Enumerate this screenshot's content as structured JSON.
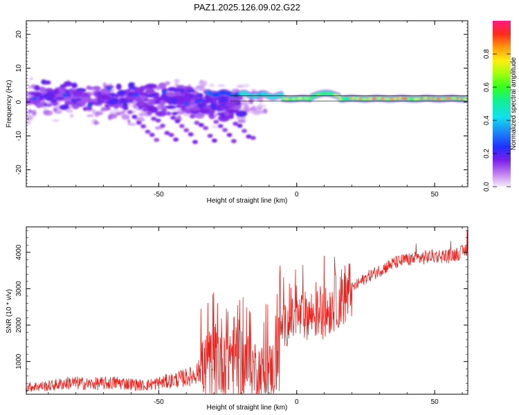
{
  "title": "PAZ1.2025.126.09.02.G22",
  "chart_data": [
    {
      "type": "heatmap",
      "name": "spectrogram",
      "xlabel": "Height of straight line (km)",
      "ylabel": "Frequency (Hz)",
      "xlim": [
        -98,
        62
      ],
      "ylim": [
        -25,
        24
      ],
      "xticks": [
        "-50",
        "0",
        "50"
      ],
      "xtick_values": [
        -50,
        0,
        50
      ],
      "yticks": [
        "20",
        "10",
        "0",
        "-10",
        "-20"
      ],
      "ytick_values": [
        20,
        10,
        0,
        -10,
        -20
      ],
      "colorbar": {
        "label": "Normalized spectral amplitude",
        "range": [
          0,
          1
        ],
        "ticks": [
          "0.0",
          "0.2",
          "0.4",
          "0.6",
          "0.8"
        ],
        "tick_values": [
          0.0,
          0.2,
          0.4,
          0.6,
          0.8
        ]
      },
      "reference_line_hz": [
        0.3,
        1.8
      ],
      "description_points": [
        {
          "x": -96,
          "f": 1,
          "a": 0.25
        },
        {
          "x": -92,
          "f": 5,
          "a": 0.1
        },
        {
          "x": -90,
          "f": -2,
          "a": 0.15
        },
        {
          "x": -85,
          "f": 2,
          "a": 0.3
        },
        {
          "x": -82,
          "f": 4,
          "a": 0.12
        },
        {
          "x": -80,
          "f": -3,
          "a": 0.12
        },
        {
          "x": -76,
          "f": 1,
          "a": 0.1
        },
        {
          "x": -72,
          "f": -1,
          "a": 0.25
        },
        {
          "x": -70,
          "f": 5,
          "a": 0.1
        },
        {
          "x": -66,
          "f": -6,
          "a": 0.1
        },
        {
          "x": -62,
          "f": 2,
          "a": 0.12
        },
        {
          "x": -60,
          "f": 3,
          "a": 0.1
        },
        {
          "x": -55,
          "f": -8,
          "a": 0.1
        },
        {
          "x": -50,
          "f": 5,
          "a": 0.12
        },
        {
          "x": -45,
          "f": -2,
          "a": 0.1
        },
        {
          "x": -42,
          "f": 1,
          "a": 0.12
        },
        {
          "x": -35,
          "f": 0,
          "a": 0.25
        },
        {
          "x": -30,
          "f": 2.5,
          "a": 0.22
        },
        {
          "x": -25,
          "f": 3,
          "a": 0.3
        },
        {
          "x": -20,
          "f": 3,
          "a": 0.35
        },
        {
          "x": -15,
          "f": 2.5,
          "a": 0.4
        },
        {
          "x": -10,
          "f": 2,
          "a": 0.45
        },
        {
          "x": -5,
          "f": 1.5,
          "a": 0.55
        },
        {
          "x": 0,
          "f": 1,
          "a": 0.75
        },
        {
          "x": 5,
          "f": 1.2,
          "a": 0.7
        },
        {
          "x": 10,
          "f": 2.5,
          "a": 0.5
        },
        {
          "x": 15,
          "f": 1.5,
          "a": 0.5
        },
        {
          "x": 20,
          "f": 1,
          "a": 0.6
        },
        {
          "x": 30,
          "f": 1,
          "a": 0.8
        },
        {
          "x": 40,
          "f": 1,
          "a": 0.9
        },
        {
          "x": 50,
          "f": 1,
          "a": 1.0
        },
        {
          "x": 60,
          "f": 1,
          "a": 0.8
        }
      ]
    },
    {
      "type": "line",
      "name": "snr",
      "xlabel": "Height of straight line (km)",
      "ylabel": "SNR (10 * v/v)",
      "xlim": [
        -98,
        62
      ],
      "ylim": [
        100,
        4700
      ],
      "xticks": [
        "-50",
        "0",
        "50"
      ],
      "xtick_values": [
        -50,
        0,
        50
      ],
      "yticks": [
        "1000",
        "2000",
        "3000",
        "4000"
      ],
      "ytick_values": [
        1000,
        2000,
        3000,
        4000
      ],
      "color": "#e8211d",
      "series_envelope": [
        {
          "x": -98,
          "y": 300
        },
        {
          "x": -90,
          "y": 330
        },
        {
          "x": -82,
          "y": 420
        },
        {
          "x": -75,
          "y": 380
        },
        {
          "x": -65,
          "y": 420
        },
        {
          "x": -55,
          "y": 340
        },
        {
          "x": -45,
          "y": 480
        },
        {
          "x": -38,
          "y": 600
        },
        {
          "x": -32,
          "y": 900
        },
        {
          "x": -28,
          "y": 1100
        },
        {
          "x": -24,
          "y": 1200
        },
        {
          "x": -18,
          "y": 900
        },
        {
          "x": -12,
          "y": 700
        },
        {
          "x": -8,
          "y": 800
        },
        {
          "x": -6,
          "y": 1900
        },
        {
          "x": 0,
          "y": 2200
        },
        {
          "x": 5,
          "y": 2300
        },
        {
          "x": 10,
          "y": 2300
        },
        {
          "x": 15,
          "y": 2700
        },
        {
          "x": 20,
          "y": 3000
        },
        {
          "x": 25,
          "y": 3300
        },
        {
          "x": 30,
          "y": 3500
        },
        {
          "x": 35,
          "y": 3700
        },
        {
          "x": 40,
          "y": 3800
        },
        {
          "x": 45,
          "y": 3850
        },
        {
          "x": 50,
          "y": 3900
        },
        {
          "x": 55,
          "y": 3900
        },
        {
          "x": 60,
          "y": 4000
        },
        {
          "x": 62,
          "y": 4100
        }
      ]
    }
  ]
}
